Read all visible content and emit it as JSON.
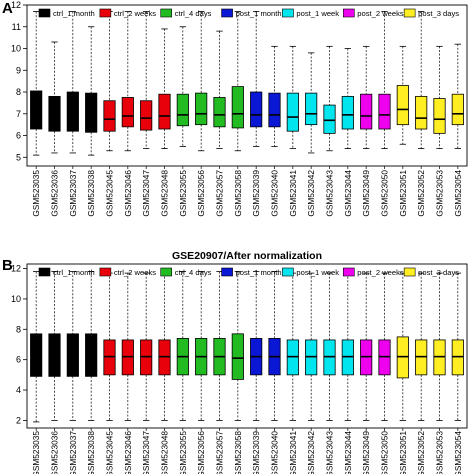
{
  "legend": [
    {
      "label": "ctrl_1 month",
      "color": "#000000"
    },
    {
      "label": "ctrl_2 weeks",
      "color": "#e8000b"
    },
    {
      "label": "ctrl_4 days",
      "color": "#22bb22"
    },
    {
      "label": "post_1 month",
      "color": "#0a18d6"
    },
    {
      "label": "post_1 week",
      "color": "#00e5ee"
    },
    {
      "label": "post_2 weeks",
      "color": "#ee00ee"
    },
    {
      "label": "post_3 days",
      "color": "#ffee22"
    }
  ],
  "chart_data": [
    {
      "type": "boxplot",
      "panel_letter": "A",
      "title": "",
      "ylim": [
        4.6,
        12
      ],
      "yticks": [
        5,
        6,
        7,
        8,
        9,
        10,
        11,
        12
      ],
      "categories": [
        "GSM523035",
        "GSM523036",
        "GSM523037",
        "GSM523038",
        "GSM523045",
        "GSM523046",
        "GSM523047",
        "GSM523048",
        "GSM523055",
        "GSM523056",
        "GSM523057",
        "GSM523058",
        "GSM523039",
        "GSM523040",
        "GSM523041",
        "GSM523042",
        "GSM523043",
        "GSM523044",
        "GSM523049",
        "GSM523050",
        "GSM523051",
        "GSM523052",
        "GSM523053",
        "GSM523054"
      ],
      "groups": [
        "ctrl_1 month",
        "ctrl_1 month",
        "ctrl_1 month",
        "ctrl_1 month",
        "ctrl_2 weeks",
        "ctrl_2 weeks",
        "ctrl_2 weeks",
        "ctrl_2 weeks",
        "ctrl_4 days",
        "ctrl_4 days",
        "ctrl_4 days",
        "ctrl_4 days",
        "post_1 month",
        "post_1 month",
        "post_1 week",
        "post_1 week",
        "post_1 week",
        "post_1 week",
        "post_2 weeks",
        "post_2 weeks",
        "post_3 days",
        "post_3 days",
        "post_3 days",
        "post_3 days"
      ],
      "boxes": [
        {
          "min": 5.1,
          "q1": 6.3,
          "median": 7.2,
          "q3": 8.05,
          "max": 11.7
        },
        {
          "min": 5.2,
          "q1": 6.2,
          "median": 7.0,
          "q3": 7.8,
          "max": 10.3
        },
        {
          "min": 5.2,
          "q1": 6.2,
          "median": 7.1,
          "q3": 8.0,
          "max": 11.7
        },
        {
          "min": 5.1,
          "q1": 6.15,
          "median": 7.0,
          "q3": 7.95,
          "max": 11.0
        },
        {
          "min": 5.3,
          "q1": 6.2,
          "median": 6.75,
          "q3": 7.6,
          "max": 11.7
        },
        {
          "min": 5.3,
          "q1": 6.4,
          "median": 6.9,
          "q3": 7.75,
          "max": 11.7
        },
        {
          "min": 5.4,
          "q1": 6.25,
          "median": 6.8,
          "q3": 7.6,
          "max": 11.7
        },
        {
          "min": 5.4,
          "q1": 6.3,
          "median": 6.9,
          "q3": 7.9,
          "max": 10.9
        },
        {
          "min": 5.5,
          "q1": 6.45,
          "median": 6.95,
          "q3": 7.9,
          "max": 11.0
        },
        {
          "min": 5.3,
          "q1": 6.5,
          "median": 7.0,
          "q3": 7.95,
          "max": 11.7
        },
        {
          "min": 5.4,
          "q1": 6.4,
          "median": 6.95,
          "q3": 7.75,
          "max": 10.8
        },
        {
          "min": 5.3,
          "q1": 6.35,
          "median": 7.0,
          "q3": 8.25,
          "max": 11.7
        },
        {
          "min": 5.5,
          "q1": 6.4,
          "median": 6.95,
          "q3": 8.0,
          "max": 11.7
        },
        {
          "min": 5.5,
          "q1": 6.4,
          "median": 6.95,
          "q3": 7.95,
          "max": 10.1
        },
        {
          "min": 5.4,
          "q1": 6.2,
          "median": 6.85,
          "q3": 7.95,
          "max": 10.1
        },
        {
          "min": 5.2,
          "q1": 6.5,
          "median": 7.0,
          "q3": 7.95,
          "max": 9.8
        },
        {
          "min": 5.3,
          "q1": 6.1,
          "median": 6.7,
          "q3": 7.4,
          "max": 10.1
        },
        {
          "min": 5.4,
          "q1": 6.3,
          "median": 6.95,
          "q3": 7.8,
          "max": 10.0
        },
        {
          "min": 5.4,
          "q1": 6.3,
          "median": 6.9,
          "q3": 7.9,
          "max": 10.1
        },
        {
          "min": 5.4,
          "q1": 6.3,
          "median": 6.95,
          "q3": 7.9,
          "max": 11.7
        },
        {
          "min": 5.6,
          "q1": 6.5,
          "median": 7.2,
          "q3": 8.3,
          "max": 10.1
        },
        {
          "min": 5.4,
          "q1": 6.3,
          "median": 6.8,
          "q3": 7.8,
          "max": 11.7
        },
        {
          "min": 5.4,
          "q1": 6.1,
          "median": 6.75,
          "q3": 7.7,
          "max": 10.1
        },
        {
          "min": 5.4,
          "q1": 6.5,
          "median": 7.0,
          "q3": 7.9,
          "max": 10.2
        }
      ]
    },
    {
      "type": "boxplot",
      "panel_letter": "B",
      "title": "GSE20907/After normalization",
      "ylim": [
        1.5,
        12.3
      ],
      "yticks": [
        2,
        4,
        6,
        8,
        10,
        12
      ],
      "categories": [
        "GSM523035",
        "GSM523036",
        "GSM523037",
        "GSM523038",
        "GSM523045",
        "GSM523046",
        "GSM523047",
        "GSM523048",
        "GSM523055",
        "GSM523056",
        "GSM523057",
        "GSM523058",
        "GSM523039",
        "GSM523040",
        "GSM523041",
        "GSM523042",
        "GSM523043",
        "GSM523044",
        "GSM523049",
        "GSM523050",
        "GSM523051",
        "GSM523052",
        "GSM523053",
        "GSM523054"
      ],
      "groups": [
        "ctrl_1 month",
        "ctrl_1 month",
        "ctrl_1 month",
        "ctrl_1 month",
        "ctrl_2 weeks",
        "ctrl_2 weeks",
        "ctrl_2 weeks",
        "ctrl_2 weeks",
        "ctrl_4 days",
        "ctrl_4 days",
        "ctrl_4 days",
        "ctrl_4 days",
        "post_1 month",
        "post_1 month",
        "post_1 week",
        "post_1 week",
        "post_1 week",
        "post_1 week",
        "post_2 weeks",
        "post_2 weeks",
        "post_3 days",
        "post_3 days",
        "post_3 days",
        "post_3 days"
      ],
      "boxes": [
        {
          "min": 1.9,
          "q1": 4.9,
          "median": 6.3,
          "q3": 7.7,
          "max": 11.8
        },
        {
          "min": 2.0,
          "q1": 4.9,
          "median": 6.3,
          "q3": 7.7,
          "max": 11.8
        },
        {
          "min": 2.0,
          "q1": 4.9,
          "median": 6.3,
          "q3": 7.7,
          "max": 11.8
        },
        {
          "min": 2.0,
          "q1": 4.9,
          "median": 6.3,
          "q3": 7.7,
          "max": 11.8
        },
        {
          "min": 2.0,
          "q1": 5.0,
          "median": 6.2,
          "q3": 7.3,
          "max": 11.7
        },
        {
          "min": 2.0,
          "q1": 5.0,
          "median": 6.2,
          "q3": 7.3,
          "max": 11.7
        },
        {
          "min": 2.0,
          "q1": 5.0,
          "median": 6.2,
          "q3": 7.3,
          "max": 11.7
        },
        {
          "min": 2.0,
          "q1": 5.0,
          "median": 6.2,
          "q3": 7.3,
          "max": 11.7
        },
        {
          "min": 2.0,
          "q1": 5.0,
          "median": 6.2,
          "q3": 7.4,
          "max": 11.8
        },
        {
          "min": 2.0,
          "q1": 5.0,
          "median": 6.2,
          "q3": 7.4,
          "max": 11.8
        },
        {
          "min": 2.0,
          "q1": 5.0,
          "median": 6.2,
          "q3": 7.4,
          "max": 11.8
        },
        {
          "min": 2.0,
          "q1": 4.7,
          "median": 6.1,
          "q3": 7.7,
          "max": 11.8
        },
        {
          "min": 2.0,
          "q1": 5.0,
          "median": 6.2,
          "q3": 7.4,
          "max": 11.8
        },
        {
          "min": 2.0,
          "q1": 5.0,
          "median": 6.2,
          "q3": 7.4,
          "max": 11.8
        },
        {
          "min": 2.0,
          "q1": 5.0,
          "median": 6.2,
          "q3": 7.3,
          "max": 11.7
        },
        {
          "min": 2.0,
          "q1": 5.0,
          "median": 6.2,
          "q3": 7.3,
          "max": 11.7
        },
        {
          "min": 2.0,
          "q1": 5.0,
          "median": 6.2,
          "q3": 7.3,
          "max": 11.7
        },
        {
          "min": 2.0,
          "q1": 5.0,
          "median": 6.2,
          "q3": 7.3,
          "max": 11.7
        },
        {
          "min": 2.0,
          "q1": 5.0,
          "median": 6.2,
          "q3": 7.3,
          "max": 11.7
        },
        {
          "min": 2.0,
          "q1": 5.0,
          "median": 6.2,
          "q3": 7.3,
          "max": 11.7
        },
        {
          "min": 2.0,
          "q1": 4.8,
          "median": 6.2,
          "q3": 7.5,
          "max": 11.7
        },
        {
          "min": 2.0,
          "q1": 5.0,
          "median": 6.2,
          "q3": 7.3,
          "max": 11.7
        },
        {
          "min": 2.0,
          "q1": 5.0,
          "median": 6.2,
          "q3": 7.3,
          "max": 11.7
        },
        {
          "min": 2.0,
          "q1": 5.0,
          "median": 6.2,
          "q3": 7.3,
          "max": 11.7
        }
      ]
    }
  ]
}
